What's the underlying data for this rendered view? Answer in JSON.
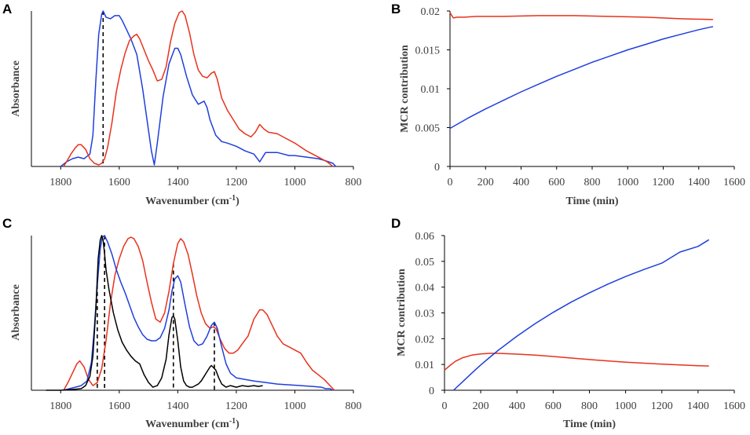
{
  "panels": [
    {
      "id": "A",
      "letter": "A",
      "type": "line",
      "xlabel": "Wavenumber (cm",
      "xlabel_sup": "-1",
      "xlabel_end": ")",
      "ylabel": "Absorbance",
      "xlim": [
        1900,
        800
      ],
      "xticks": [
        1800,
        1600,
        1400,
        1200,
        1000,
        800
      ],
      "ylim": [
        0,
        1
      ],
      "yticks": [],
      "dashed_markers": [
        1655
      ],
      "series": [
        {
          "name": "blue spectrum",
          "color": "#1f3fdb",
          "x": [
            1800,
            1780,
            1760,
            1740,
            1720,
            1700,
            1690,
            1680,
            1670,
            1660,
            1655,
            1645,
            1630,
            1615,
            1600,
            1590,
            1580,
            1560,
            1540,
            1520,
            1505,
            1490,
            1480,
            1470,
            1450,
            1430,
            1410,
            1400,
            1390,
            1370,
            1350,
            1330,
            1310,
            1300,
            1290,
            1270,
            1250,
            1230,
            1200,
            1170,
            1140,
            1120,
            1100,
            1060,
            1020,
            1000,
            960,
            920,
            900,
            870,
            860
          ],
          "y": [
            0.0,
            0.03,
            0.05,
            0.06,
            0.05,
            0.08,
            0.2,
            0.55,
            0.85,
            0.98,
            1.0,
            0.96,
            0.95,
            0.97,
            0.97,
            0.94,
            0.9,
            0.82,
            0.72,
            0.5,
            0.3,
            0.1,
            0.01,
            0.15,
            0.45,
            0.66,
            0.76,
            0.76,
            0.72,
            0.58,
            0.46,
            0.4,
            0.42,
            0.38,
            0.3,
            0.2,
            0.16,
            0.15,
            0.13,
            0.1,
            0.08,
            0.03,
            0.09,
            0.09,
            0.07,
            0.07,
            0.06,
            0.05,
            0.04,
            0.02,
            0.0
          ]
        },
        {
          "name": "red spectrum",
          "color": "#e8321c",
          "x": [
            1790,
            1780,
            1765,
            1750,
            1740,
            1730,
            1715,
            1700,
            1685,
            1670,
            1660,
            1650,
            1640,
            1625,
            1610,
            1595,
            1580,
            1565,
            1550,
            1540,
            1530,
            1515,
            1500,
            1485,
            1470,
            1455,
            1440,
            1425,
            1410,
            1395,
            1385,
            1375,
            1360,
            1345,
            1330,
            1315,
            1300,
            1285,
            1275,
            1265,
            1250,
            1230,
            1210,
            1190,
            1170,
            1150,
            1135,
            1120,
            1105,
            1090,
            1060,
            1030,
            1000,
            960,
            920,
            890,
            870
          ],
          "y": [
            0.0,
            0.03,
            0.08,
            0.12,
            0.14,
            0.14,
            0.11,
            0.05,
            0.02,
            0.01,
            0.02,
            0.05,
            0.12,
            0.28,
            0.48,
            0.62,
            0.73,
            0.81,
            0.84,
            0.85,
            0.82,
            0.75,
            0.68,
            0.62,
            0.55,
            0.56,
            0.64,
            0.8,
            0.92,
            0.99,
            1.0,
            0.97,
            0.86,
            0.72,
            0.62,
            0.58,
            0.57,
            0.6,
            0.61,
            0.56,
            0.44,
            0.36,
            0.3,
            0.24,
            0.21,
            0.19,
            0.22,
            0.27,
            0.24,
            0.22,
            0.21,
            0.18,
            0.15,
            0.1,
            0.06,
            0.03,
            0.0
          ]
        }
      ]
    },
    {
      "id": "B",
      "letter": "B",
      "type": "line",
      "xlabel": "Time (min)",
      "ylabel": "MCR contribution",
      "xlim": [
        0,
        1600
      ],
      "xticks": [
        0,
        200,
        400,
        600,
        800,
        1000,
        1200,
        1400,
        1600
      ],
      "ylim": [
        0,
        0.02
      ],
      "yticks": [
        0,
        0.005,
        0.01,
        0.015,
        0.02
      ],
      "ytick_labels": [
        "0",
        "0.005",
        "0.01",
        "0.015",
        "0.02"
      ],
      "series": [
        {
          "name": "red component",
          "color": "#e8321c",
          "x": [
            0,
            10,
            20,
            40,
            80,
            150,
            300,
            500,
            700,
            900,
            1100,
            1300,
            1480
          ],
          "y": [
            0.0198,
            0.0194,
            0.0191,
            0.0192,
            0.0192,
            0.0193,
            0.0193,
            0.0194,
            0.0194,
            0.0193,
            0.0192,
            0.019,
            0.0189
          ]
        },
        {
          "name": "blue component",
          "color": "#1f3fdb",
          "x": [
            0,
            100,
            200,
            300,
            400,
            500,
            600,
            700,
            800,
            900,
            1000,
            1100,
            1200,
            1300,
            1400,
            1480
          ],
          "y": [
            0.0049,
            0.0062,
            0.0074,
            0.0085,
            0.0096,
            0.0106,
            0.0116,
            0.0125,
            0.0134,
            0.0142,
            0.015,
            0.0157,
            0.0164,
            0.017,
            0.0176,
            0.018
          ]
        }
      ]
    },
    {
      "id": "C",
      "letter": "C",
      "type": "line",
      "xlabel": "Wavenumber (cm",
      "xlabel_sup": "-1",
      "xlabel_end": ")",
      "ylabel": "Absorbance",
      "xlim": [
        1900,
        800
      ],
      "xticks": [
        1800,
        1600,
        1400,
        1200,
        1000,
        800
      ],
      "ylim": [
        0,
        1
      ],
      "yticks": [],
      "dashed_markers": [
        1675,
        1650,
        1415,
        1275
      ],
      "series": [
        {
          "name": "red spectrum",
          "color": "#e8321c",
          "x": [
            1790,
            1775,
            1760,
            1745,
            1735,
            1720,
            1705,
            1690,
            1675,
            1660,
            1645,
            1630,
            1615,
            1600,
            1585,
            1570,
            1560,
            1550,
            1535,
            1520,
            1505,
            1490,
            1475,
            1460,
            1445,
            1430,
            1415,
            1400,
            1390,
            1380,
            1365,
            1350,
            1335,
            1320,
            1305,
            1290,
            1280,
            1270,
            1255,
            1240,
            1225,
            1210,
            1195,
            1180,
            1160,
            1140,
            1120,
            1110,
            1095,
            1080,
            1060,
            1040,
            1020,
            1000,
            980,
            960,
            940,
            920,
            900,
            880,
            865
          ],
          "y": [
            0.0,
            0.05,
            0.11,
            0.17,
            0.19,
            0.15,
            0.07,
            0.03,
            0.05,
            0.14,
            0.32,
            0.56,
            0.74,
            0.85,
            0.93,
            0.98,
            0.99,
            0.98,
            0.93,
            0.84,
            0.7,
            0.57,
            0.46,
            0.44,
            0.5,
            0.64,
            0.82,
            0.95,
            0.98,
            0.96,
            0.88,
            0.75,
            0.61,
            0.5,
            0.43,
            0.4,
            0.41,
            0.4,
            0.33,
            0.27,
            0.24,
            0.24,
            0.26,
            0.3,
            0.35,
            0.46,
            0.52,
            0.52,
            0.49,
            0.43,
            0.35,
            0.3,
            0.28,
            0.26,
            0.24,
            0.18,
            0.13,
            0.1,
            0.07,
            0.03,
            0.0
          ]
        },
        {
          "name": "blue spectrum",
          "color": "#1f3fdb",
          "x": [
            1790,
            1770,
            1750,
            1730,
            1710,
            1695,
            1685,
            1675,
            1665,
            1658,
            1650,
            1640,
            1625,
            1610,
            1595,
            1580,
            1565,
            1550,
            1535,
            1520,
            1505,
            1490,
            1475,
            1460,
            1445,
            1430,
            1420,
            1410,
            1400,
            1390,
            1375,
            1360,
            1345,
            1330,
            1315,
            1300,
            1285,
            1275,
            1265,
            1250,
            1235,
            1220,
            1200,
            1170,
            1140,
            1100,
            1060,
            1020,
            980,
            940,
            910,
            895,
            880,
            870
          ],
          "y": [
            0.0,
            0.01,
            0.02,
            0.03,
            0.06,
            0.18,
            0.4,
            0.68,
            0.91,
            0.99,
            1.0,
            0.96,
            0.88,
            0.78,
            0.7,
            0.63,
            0.55,
            0.47,
            0.41,
            0.36,
            0.33,
            0.32,
            0.32,
            0.34,
            0.4,
            0.52,
            0.64,
            0.72,
            0.74,
            0.7,
            0.55,
            0.41,
            0.32,
            0.29,
            0.3,
            0.35,
            0.42,
            0.44,
            0.4,
            0.28,
            0.17,
            0.11,
            0.08,
            0.07,
            0.06,
            0.05,
            0.04,
            0.035,
            0.03,
            0.025,
            0.02,
            0.01,
            0.01,
            0.0
          ]
        },
        {
          "name": "black spectrum",
          "color": "#000000",
          "x": [
            1850,
            1800,
            1760,
            1730,
            1715,
            1700,
            1690,
            1680,
            1672,
            1665,
            1660,
            1655,
            1650,
            1645,
            1635,
            1620,
            1605,
            1590,
            1575,
            1560,
            1545,
            1530,
            1515,
            1500,
            1485,
            1470,
            1455,
            1440,
            1430,
            1420,
            1415,
            1410,
            1400,
            1390,
            1380,
            1370,
            1360,
            1350,
            1340,
            1330,
            1320,
            1310,
            1300,
            1290,
            1285,
            1280,
            1275,
            1270,
            1260,
            1250,
            1235,
            1220,
            1200,
            1180,
            1160,
            1140,
            1125,
            1110
          ],
          "y": [
            0.0,
            0.0,
            0.005,
            0.01,
            0.03,
            0.09,
            0.22,
            0.52,
            0.85,
            0.97,
            1.0,
            0.97,
            0.88,
            0.78,
            0.65,
            0.5,
            0.39,
            0.31,
            0.26,
            0.22,
            0.19,
            0.17,
            0.1,
            0.05,
            0.02,
            0.03,
            0.08,
            0.2,
            0.36,
            0.47,
            0.48,
            0.46,
            0.32,
            0.15,
            0.06,
            0.03,
            0.02,
            0.02,
            0.03,
            0.04,
            0.06,
            0.09,
            0.12,
            0.15,
            0.16,
            0.15,
            0.14,
            0.13,
            0.08,
            0.04,
            0.02,
            0.03,
            0.02,
            0.03,
            0.025,
            0.03,
            0.025,
            0.03
          ]
        }
      ]
    },
    {
      "id": "D",
      "letter": "D",
      "type": "line",
      "xlabel": "Time (min)",
      "ylabel": "MCR contribution",
      "xlim": [
        0,
        1600
      ],
      "xticks": [
        0,
        200,
        400,
        600,
        800,
        1000,
        1200,
        1400,
        1600
      ],
      "ylim": [
        0,
        0.06
      ],
      "yticks": [
        0,
        0.01,
        0.02,
        0.03,
        0.04,
        0.05,
        0.06
      ],
      "ytick_labels": [
        "0",
        "0.01",
        "0.02",
        "0.03",
        "0.04",
        "0.05",
        "0.06"
      ],
      "series": [
        {
          "name": "red component",
          "color": "#e8321c",
          "x": [
            0,
            30,
            60,
            100,
            150,
            200,
            250,
            300,
            400,
            500,
            600,
            700,
            800,
            900,
            1000,
            1100,
            1200,
            1300,
            1400,
            1460
          ],
          "y": [
            0.0078,
            0.0096,
            0.0112,
            0.0126,
            0.0136,
            0.0141,
            0.0143,
            0.0143,
            0.014,
            0.0136,
            0.0131,
            0.0125,
            0.0119,
            0.0114,
            0.0109,
            0.0105,
            0.0101,
            0.0098,
            0.0095,
            0.0094
          ]
        },
        {
          "name": "blue component",
          "color": "#1f3fdb",
          "x": [
            50,
            100,
            150,
            200,
            250,
            300,
            400,
            500,
            600,
            700,
            800,
            900,
            1000,
            1100,
            1200,
            1300,
            1400,
            1460
          ],
          "y": [
            0.0,
            0.0033,
            0.0066,
            0.0098,
            0.0128,
            0.0157,
            0.021,
            0.0258,
            0.0302,
            0.0342,
            0.0378,
            0.0411,
            0.0441,
            0.0468,
            0.0493,
            0.0536,
            0.0558,
            0.0584
          ]
        }
      ]
    }
  ]
}
